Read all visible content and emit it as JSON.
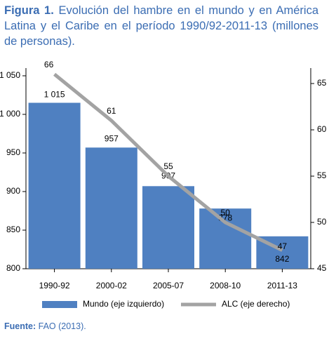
{
  "chart_data": {
    "type": "bar_line",
    "figure_label": "Figura 1.",
    "title": "Evolución del hambre en el mundo y en América Latina y el Caribe en el período 1990/92-2011-13 (millones de personas).",
    "categories": [
      "1990-92",
      "2000-02",
      "2005-07",
      "2008-10",
      "2011-13"
    ],
    "series": [
      {
        "name": "Mundo (eje izquierdo)",
        "color": "#4f80c1",
        "type": "bar",
        "values": [
          1015,
          957,
          907,
          878,
          842
        ],
        "value_labels": [
          "1 015",
          "957",
          "907",
          "878",
          "842"
        ]
      },
      {
        "name": "ALC (eje derecho)",
        "color": "#a3a3a3",
        "type": "line",
        "axis": "y2",
        "values": [
          66,
          61,
          55,
          50,
          47
        ]
      }
    ],
    "ylim": [
      800,
      1060
    ],
    "yticks": [
      800,
      850,
      900,
      950,
      {
        "value": 1000,
        "label": "1 000"
      },
      {
        "value": 1050,
        "label": "1 050"
      }
    ],
    "y2lim": [
      45,
      66.67
    ],
    "y2ticks": [
      45,
      50,
      55,
      60,
      65
    ],
    "legend": "bottom",
    "note_label": "Fuente:",
    "note": "FAO (2013)."
  }
}
